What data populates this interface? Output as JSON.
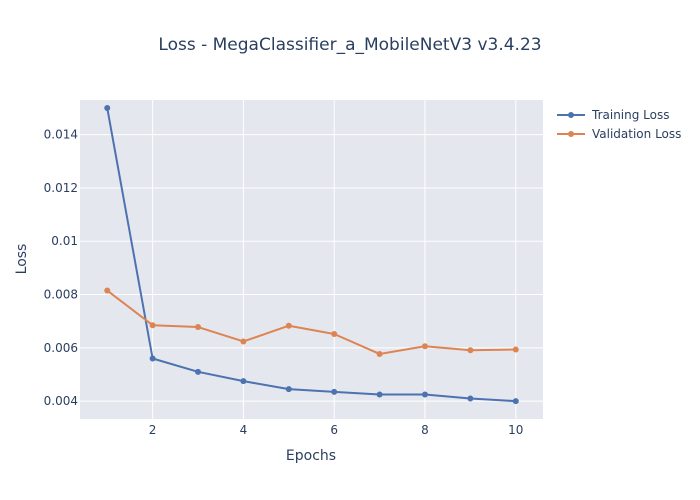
{
  "chart_data": {
    "type": "line",
    "title": "Loss - MegaClassifier_a_MobileNetV3 v3.4.23",
    "xlabel": "Epochs",
    "ylabel": "Loss",
    "x": [
      1,
      2,
      3,
      4,
      5,
      6,
      7,
      8,
      9,
      10
    ],
    "xlim": [
      0.4,
      10.6
    ],
    "ylim": [
      0.00333,
      0.0153
    ],
    "x_ticks": [
      2,
      4,
      6,
      8,
      10
    ],
    "x_tick_labels": [
      "2",
      "4",
      "6",
      "8",
      "10"
    ],
    "y_ticks": [
      0.004,
      0.006,
      0.008,
      0.01,
      0.012,
      0.014
    ],
    "y_tick_labels": [
      "0.004",
      "0.006",
      "0.008",
      "0.01",
      "0.012",
      "0.014"
    ],
    "grid": true,
    "legend_position": "top-right",
    "series": [
      {
        "name": "Training Loss",
        "color": "#4c72b0",
        "values": [
          0.015,
          0.0056,
          0.0051,
          0.00475,
          0.00445,
          0.00435,
          0.00425,
          0.00425,
          0.0041,
          0.004
        ]
      },
      {
        "name": "Validation Loss",
        "color": "#dd8452",
        "values": [
          0.00815,
          0.00685,
          0.00678,
          0.00624,
          0.00683,
          0.00652,
          0.00577,
          0.00606,
          0.00591,
          0.00594
        ]
      }
    ],
    "colors": {
      "plot_background": "#e5e7ee",
      "grid": "#ffffff",
      "text": "#2a3f5f"
    }
  }
}
